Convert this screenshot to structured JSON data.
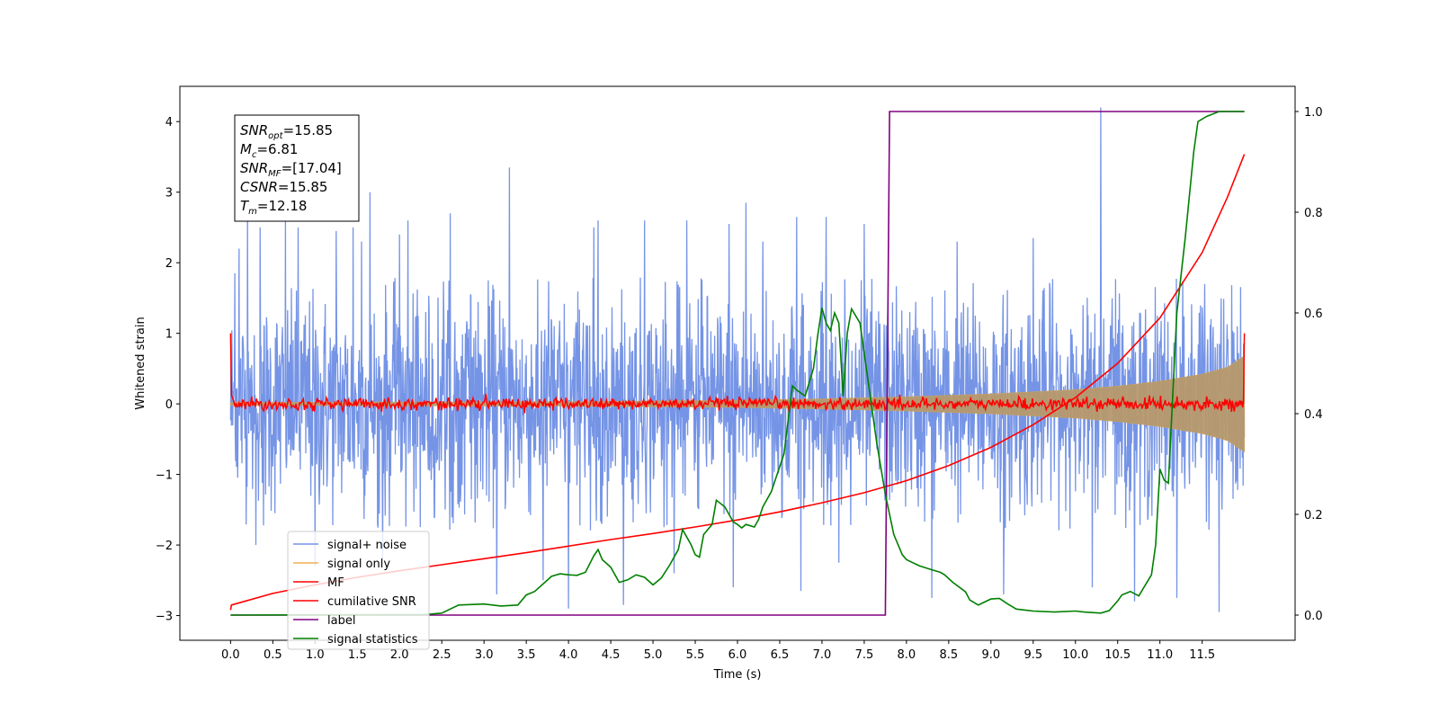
{
  "chart_data": {
    "type": "line",
    "xlabel": "Time (s)",
    "ylabel": "Whitened strain",
    "xlim": [
      -0.6,
      12.6
    ],
    "ylim": [
      -3.35,
      4.5
    ],
    "y2lim": [
      -0.05,
      1.05
    ],
    "x_ticks": [
      0.0,
      0.5,
      1.0,
      1.5,
      2.0,
      2.5,
      3.0,
      3.5,
      4.0,
      4.5,
      5.0,
      5.5,
      6.0,
      6.5,
      7.0,
      7.5,
      8.0,
      8.5,
      9.0,
      9.5,
      10.0,
      10.5,
      11.0,
      11.5
    ],
    "x_tick_labels": [
      "0.0",
      "0.5",
      "1.0",
      "1.5",
      "2.0",
      "2.5",
      "3.0",
      "3.5",
      "4.0",
      "4.5",
      "5.0",
      "5.5",
      "6.0",
      "6.5",
      "7.0",
      "7.5",
      "8.0",
      "8.5",
      "9.0",
      "9.5",
      "10.0",
      "10.5",
      "11.0",
      "11.5"
    ],
    "y_ticks": [
      -3,
      -2,
      -1,
      0,
      1,
      2,
      3,
      4
    ],
    "y_tick_labels": [
      "−3",
      "−2",
      "−1",
      "0",
      "1",
      "2",
      "3",
      "4"
    ],
    "y2_ticks": [
      0.0,
      0.2,
      0.4,
      0.6,
      0.8,
      1.0
    ],
    "y2_tick_labels": [
      "0.0",
      "0.2",
      "0.4",
      "0.6",
      "0.8",
      "1.0"
    ],
    "grid": false,
    "legend_placement": "lower-left",
    "annotation": {
      "lines": [
        {
          "base": "SNR",
          "sub": "opt",
          "value": "=15.85"
        },
        {
          "base": "M",
          "sub": "c",
          "value": "=6.81"
        },
        {
          "base": "SNR",
          "sub": "MF",
          "value": "=[17.04]"
        },
        {
          "base": "CSNR",
          "sub": "",
          "value": "=15.85"
        },
        {
          "base": "T",
          "sub": "m",
          "value": "=12.18"
        }
      ]
    },
    "series": [
      {
        "name": "signal+ noise",
        "color": "#7594e6",
        "axis": "left",
        "description_envelope": {
          "x_start": 0.0,
          "x_end": 12.0,
          "typical_upper": 1.8,
          "typical_lower": -1.8
        },
        "spikes": [
          [
            0.05,
            1.85
          ],
          [
            0.1,
            2.2
          ],
          [
            0.2,
            2.75
          ],
          [
            0.35,
            2.5
          ],
          [
            0.65,
            2.6
          ],
          [
            0.8,
            2.5
          ],
          [
            1.0,
            2.75
          ],
          [
            1.25,
            2.45
          ],
          [
            1.45,
            2.5
          ],
          [
            1.55,
            2.3
          ],
          [
            1.65,
            3.0
          ],
          [
            2.0,
            2.4
          ],
          [
            2.1,
            2.6
          ],
          [
            2.6,
            2.7
          ],
          [
            3.3,
            3.35
          ],
          [
            3.7,
            2.55
          ],
          [
            4.3,
            2.5
          ],
          [
            4.35,
            2.6
          ],
          [
            4.9,
            2.6
          ],
          [
            5.4,
            2.6
          ],
          [
            5.9,
            2.55
          ],
          [
            6.1,
            2.85
          ],
          [
            6.3,
            2.3
          ],
          [
            6.7,
            2.65
          ],
          [
            7.05,
            2.65
          ],
          [
            7.5,
            2.55
          ],
          [
            8.6,
            2.3
          ],
          [
            9.15,
            2.5
          ],
          [
            9.5,
            2.35
          ],
          [
            10.3,
            4.2
          ],
          [
            11.2,
            2.5
          ],
          [
            0.3,
            -2.0
          ],
          [
            1.0,
            -2.3
          ],
          [
            1.8,
            -2.2
          ],
          [
            3.15,
            -2.7
          ],
          [
            3.7,
            -2.5
          ],
          [
            4.0,
            -2.9
          ],
          [
            4.65,
            -2.85
          ],
          [
            5.25,
            -2.4
          ],
          [
            5.95,
            -2.6
          ],
          [
            6.75,
            -2.65
          ],
          [
            7.2,
            -2.25
          ],
          [
            8.3,
            -2.75
          ],
          [
            9.15,
            -2.7
          ],
          [
            10.2,
            -2.6
          ],
          [
            10.7,
            -2.8
          ],
          [
            11.2,
            -2.75
          ],
          [
            11.7,
            -2.95
          ]
        ]
      },
      {
        "name": "signal only",
        "color": "#f2b050",
        "axis": "left",
        "envelope": [
          [
            0.0,
            0.02
          ],
          [
            4.0,
            0.03
          ],
          [
            6.0,
            0.05
          ],
          [
            7.0,
            0.07
          ],
          [
            8.0,
            0.1
          ],
          [
            9.0,
            0.14
          ],
          [
            10.0,
            0.2
          ],
          [
            10.5,
            0.25
          ],
          [
            11.0,
            0.32
          ],
          [
            11.5,
            0.42
          ],
          [
            11.8,
            0.52
          ],
          [
            12.0,
            0.68
          ]
        ]
      },
      {
        "name": "MF",
        "color": "#ff0000",
        "axis": "left",
        "start_value": 1.0,
        "end_value": 1.0,
        "baseline": 0.0,
        "jitter": 0.07
      },
      {
        "name": "cumilative SNR",
        "color": "#ff0000",
        "axis": "right",
        "points": [
          [
            0.0,
            0.01
          ],
          [
            0.01,
            0.02
          ],
          [
            0.5,
            0.043
          ],
          [
            1.0,
            0.06
          ],
          [
            1.5,
            0.075
          ],
          [
            2.0,
            0.088
          ],
          [
            2.5,
            0.1
          ],
          [
            3.0,
            0.112
          ],
          [
            3.5,
            0.124
          ],
          [
            4.0,
            0.137
          ],
          [
            4.5,
            0.15
          ],
          [
            5.0,
            0.162
          ],
          [
            5.5,
            0.175
          ],
          [
            6.0,
            0.189
          ],
          [
            6.5,
            0.205
          ],
          [
            7.0,
            0.223
          ],
          [
            7.5,
            0.243
          ],
          [
            8.0,
            0.267
          ],
          [
            8.5,
            0.297
          ],
          [
            9.0,
            0.333
          ],
          [
            9.5,
            0.378
          ],
          [
            10.0,
            0.432
          ],
          [
            10.5,
            0.5
          ],
          [
            11.0,
            0.59
          ],
          [
            11.5,
            0.72
          ],
          [
            11.8,
            0.83
          ],
          [
            12.0,
            0.915
          ]
        ]
      },
      {
        "name": "label",
        "color": "#800080",
        "axis": "right",
        "points": [
          [
            0.0,
            0.0
          ],
          [
            7.75,
            0.0
          ],
          [
            7.8,
            1.0
          ],
          [
            12.0,
            1.0
          ]
        ]
      },
      {
        "name": "signal statistics",
        "color": "#008000",
        "axis": "right",
        "points": [
          [
            0.0,
            0.0
          ],
          [
            2.3,
            0.001
          ],
          [
            2.5,
            0.004
          ],
          [
            2.7,
            0.02
          ],
          [
            3.0,
            0.022
          ],
          [
            3.2,
            0.018
          ],
          [
            3.4,
            0.02
          ],
          [
            3.5,
            0.04
          ],
          [
            3.6,
            0.047
          ],
          [
            3.8,
            0.077
          ],
          [
            3.9,
            0.082
          ],
          [
            4.0,
            0.08
          ],
          [
            4.1,
            0.079
          ],
          [
            4.2,
            0.085
          ],
          [
            4.3,
            0.118
          ],
          [
            4.35,
            0.13
          ],
          [
            4.4,
            0.11
          ],
          [
            4.5,
            0.095
          ],
          [
            4.55,
            0.08
          ],
          [
            4.6,
            0.065
          ],
          [
            4.7,
            0.07
          ],
          [
            4.8,
            0.08
          ],
          [
            4.9,
            0.075
          ],
          [
            5.0,
            0.06
          ],
          [
            5.1,
            0.074
          ],
          [
            5.2,
            0.1
          ],
          [
            5.3,
            0.13
          ],
          [
            5.35,
            0.17
          ],
          [
            5.4,
            0.155
          ],
          [
            5.45,
            0.14
          ],
          [
            5.5,
            0.12
          ],
          [
            5.55,
            0.115
          ],
          [
            5.6,
            0.16
          ],
          [
            5.7,
            0.18
          ],
          [
            5.75,
            0.228
          ],
          [
            5.85,
            0.215
          ],
          [
            5.9,
            0.2
          ],
          [
            5.95,
            0.185
          ],
          [
            6.0,
            0.18
          ],
          [
            6.05,
            0.173
          ],
          [
            6.1,
            0.18
          ],
          [
            6.2,
            0.175
          ],
          [
            6.25,
            0.19
          ],
          [
            6.3,
            0.215
          ],
          [
            6.4,
            0.245
          ],
          [
            6.45,
            0.27
          ],
          [
            6.55,
            0.32
          ],
          [
            6.65,
            0.455
          ],
          [
            6.7,
            0.447
          ],
          [
            6.8,
            0.435
          ],
          [
            6.9,
            0.49
          ],
          [
            6.95,
            0.555
          ],
          [
            7.0,
            0.61
          ],
          [
            7.05,
            0.58
          ],
          [
            7.1,
            0.565
          ],
          [
            7.15,
            0.6
          ],
          [
            7.2,
            0.58
          ],
          [
            7.25,
            0.435
          ],
          [
            7.3,
            0.56
          ],
          [
            7.35,
            0.608
          ],
          [
            7.45,
            0.58
          ],
          [
            7.55,
            0.46
          ],
          [
            7.65,
            0.34
          ],
          [
            7.75,
            0.24
          ],
          [
            7.8,
            0.2
          ],
          [
            7.85,
            0.16
          ],
          [
            7.95,
            0.12
          ],
          [
            8.0,
            0.11
          ],
          [
            8.15,
            0.098
          ],
          [
            8.3,
            0.09
          ],
          [
            8.4,
            0.085
          ],
          [
            8.45,
            0.08
          ],
          [
            8.55,
            0.065
          ],
          [
            8.7,
            0.046
          ],
          [
            8.75,
            0.03
          ],
          [
            8.85,
            0.02
          ],
          [
            9.0,
            0.032
          ],
          [
            9.1,
            0.033
          ],
          [
            9.2,
            0.022
          ],
          [
            9.3,
            0.012
          ],
          [
            9.5,
            0.008
          ],
          [
            9.75,
            0.006
          ],
          [
            10.0,
            0.008
          ],
          [
            10.1,
            0.006
          ],
          [
            10.3,
            0.004
          ],
          [
            10.4,
            0.009
          ],
          [
            10.5,
            0.028
          ],
          [
            10.55,
            0.04
          ],
          [
            10.65,
            0.047
          ],
          [
            10.75,
            0.038
          ],
          [
            10.9,
            0.08
          ],
          [
            10.95,
            0.14
          ],
          [
            11.0,
            0.29
          ],
          [
            11.05,
            0.268
          ],
          [
            11.1,
            0.262
          ],
          [
            11.2,
            0.6
          ],
          [
            11.3,
            0.75
          ],
          [
            11.4,
            0.92
          ],
          [
            11.45,
            0.98
          ],
          [
            11.55,
            0.99
          ],
          [
            11.7,
            1.0
          ],
          [
            12.0,
            1.0
          ]
        ]
      }
    ]
  }
}
